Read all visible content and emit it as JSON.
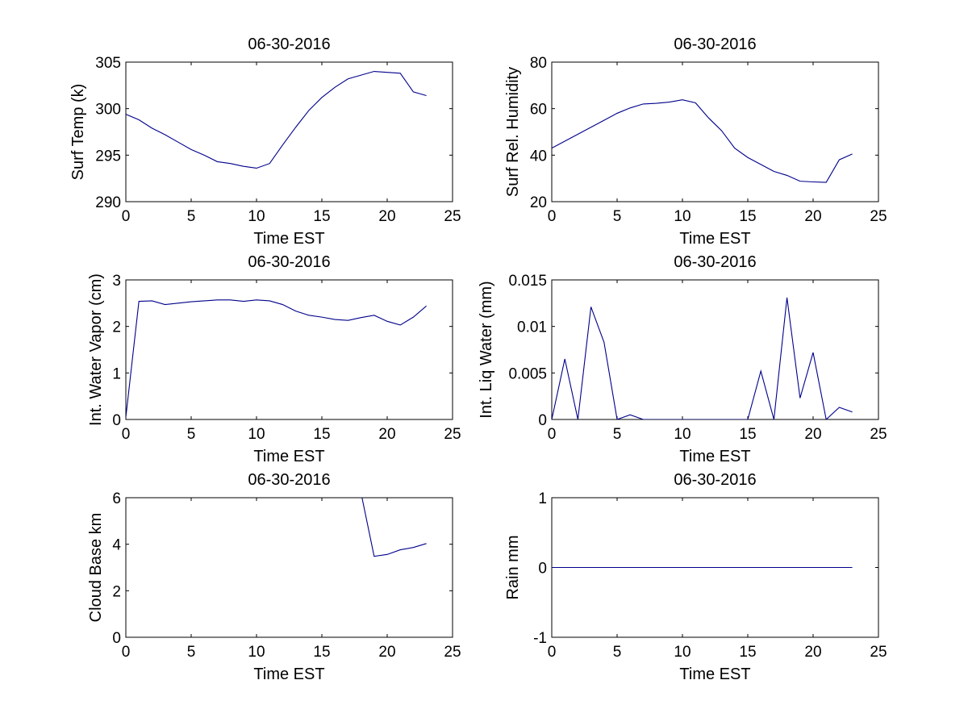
{
  "figure": {
    "background": "#ffffff",
    "line_color": "#00008b"
  },
  "chart_data": [
    {
      "type": "line",
      "title": "06-30-2016",
      "xlabel": "Time EST",
      "ylabel": "Surf Temp (k)",
      "xlim": [
        0,
        25
      ],
      "ylim": [
        290,
        305
      ],
      "xticks": [
        0,
        5,
        10,
        15,
        20,
        25
      ],
      "yticks": [
        290,
        295,
        300,
        305
      ],
      "ytick_labels": [
        "290",
        "295",
        "300",
        "305"
      ],
      "grid": false,
      "series": [
        {
          "x": [
            0,
            1,
            2,
            3,
            4,
            5,
            6,
            7,
            8,
            9,
            10,
            11,
            12,
            13,
            14,
            15,
            16,
            17,
            18,
            19,
            20,
            21,
            22,
            23
          ],
          "y": [
            299.4,
            298.8,
            297.9,
            297.2,
            296.4,
            295.6,
            295.0,
            294.3,
            294.1,
            293.8,
            293.6,
            294.1,
            296.1,
            298.0,
            299.8,
            301.2,
            302.3,
            303.2,
            303.6,
            304.0,
            303.9,
            303.8,
            301.8,
            301.4
          ]
        }
      ]
    },
    {
      "type": "line",
      "title": "06-30-2016",
      "xlabel": "Time EST",
      "ylabel": "Surf Rel. Humidity",
      "xlim": [
        0,
        25
      ],
      "ylim": [
        20,
        80
      ],
      "xticks": [
        0,
        5,
        10,
        15,
        20,
        25
      ],
      "yticks": [
        20,
        40,
        60,
        80
      ],
      "ytick_labels": [
        "20",
        "40",
        "60",
        "80"
      ],
      "grid": false,
      "series": [
        {
          "x": [
            0,
            1,
            2,
            3,
            4,
            5,
            6,
            7,
            8,
            9,
            10,
            11,
            12,
            13,
            14,
            15,
            16,
            17,
            18,
            19,
            20,
            21,
            22,
            23
          ],
          "y": [
            43,
            46,
            49,
            52,
            55,
            58,
            60.3,
            62,
            62.3,
            62.8,
            63.8,
            62.5,
            56,
            50.5,
            43,
            39,
            36,
            33,
            31.3,
            28.8,
            28.5,
            28.3,
            38,
            40.5
          ]
        }
      ]
    },
    {
      "type": "line",
      "title": "06-30-2016",
      "xlabel": "Time EST",
      "ylabel": "Int. Water Vapor (cm)",
      "xlim": [
        0,
        25
      ],
      "ylim": [
        0,
        3
      ],
      "xticks": [
        0,
        5,
        10,
        15,
        20,
        25
      ],
      "yticks": [
        0,
        1,
        2,
        3
      ],
      "ytick_labels": [
        "0",
        "1",
        "2",
        "3"
      ],
      "grid": false,
      "series": [
        {
          "x": [
            0,
            1,
            2,
            3,
            4,
            5,
            6,
            7,
            8,
            9,
            10,
            11,
            12,
            13,
            14,
            15,
            16,
            17,
            18,
            19,
            20,
            21,
            22,
            23
          ],
          "y": [
            0.05,
            2.54,
            2.55,
            2.47,
            2.5,
            2.53,
            2.55,
            2.57,
            2.57,
            2.54,
            2.57,
            2.55,
            2.47,
            2.33,
            2.24,
            2.2,
            2.15,
            2.13,
            2.19,
            2.24,
            2.11,
            2.03,
            2.2,
            2.44
          ]
        }
      ]
    },
    {
      "type": "line",
      "title": "06-30-2016",
      "xlabel": "Time EST",
      "ylabel": "Int. Liq Water (mm)",
      "xlim": [
        0,
        25
      ],
      "ylim": [
        0,
        0.015
      ],
      "xticks": [
        0,
        5,
        10,
        15,
        20,
        25
      ],
      "yticks": [
        0,
        0.005,
        0.01,
        0.015
      ],
      "ytick_labels": [
        "0",
        "0.005",
        "0.01",
        "0.015"
      ],
      "grid": false,
      "series": [
        {
          "x": [
            0,
            1,
            2,
            3,
            4,
            5,
            6,
            7,
            8,
            9,
            10,
            11,
            12,
            13,
            14,
            15,
            16,
            17,
            18,
            19,
            20,
            21,
            22,
            23
          ],
          "y": [
            0,
            0.0065,
            0,
            0.0121,
            0.0083,
            0,
            0.0005,
            0,
            0,
            0,
            0,
            0,
            0,
            0,
            0,
            0,
            0.0052,
            0,
            0.0131,
            0.0023,
            0.0072,
            0,
            0.0013,
            0.0008
          ]
        }
      ]
    },
    {
      "type": "line",
      "title": "06-30-2016",
      "xlabel": "Time EST",
      "ylabel": "Cloud Base km",
      "xlim": [
        0,
        25
      ],
      "ylim": [
        0,
        6
      ],
      "xticks": [
        0,
        5,
        10,
        15,
        20,
        25
      ],
      "yticks": [
        0,
        2,
        4,
        6
      ],
      "ytick_labels": [
        "0",
        "2",
        "4",
        "6"
      ],
      "grid": false,
      "series": [
        {
          "x": [
            18,
            19,
            20,
            21,
            22,
            23
          ],
          "y": [
            6.2,
            3.48,
            3.56,
            3.76,
            3.86,
            4.03
          ]
        }
      ]
    },
    {
      "type": "line",
      "title": "06-30-2016",
      "xlabel": "Time EST",
      "ylabel": "Rain mm",
      "xlim": [
        0,
        25
      ],
      "ylim": [
        -1,
        1
      ],
      "xticks": [
        0,
        5,
        10,
        15,
        20,
        25
      ],
      "yticks": [
        -1,
        0,
        1
      ],
      "ytick_labels": [
        "-1",
        "0",
        "1"
      ],
      "grid": false,
      "series": [
        {
          "x": [
            0,
            1,
            2,
            3,
            4,
            5,
            6,
            7,
            8,
            9,
            10,
            11,
            12,
            13,
            14,
            15,
            16,
            17,
            18,
            19,
            20,
            21,
            22,
            23
          ],
          "y": [
            0,
            0,
            0,
            0,
            0,
            0,
            0,
            0,
            0,
            0,
            0,
            0,
            0,
            0,
            0,
            0,
            0,
            0,
            0,
            0,
            0,
            0,
            0,
            0
          ]
        }
      ]
    }
  ]
}
